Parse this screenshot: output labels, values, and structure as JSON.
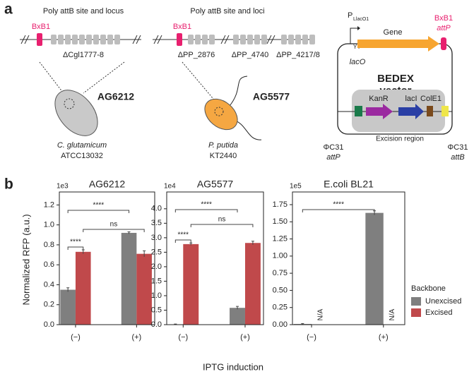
{
  "panel_labels": [
    "a",
    "b"
  ],
  "diagram": {
    "strain_1": {
      "title": "Poly attB site and locus",
      "site": "BxB1",
      "loci": [
        "ΔCgl1777-8"
      ],
      "strain": "AG6212",
      "species": "C. glutamicum",
      "isolate": "ATCC13032"
    },
    "strain_2": {
      "title": "Poly attB site and loci",
      "site": "BxB1",
      "loci": [
        "ΔPP_2876",
        "ΔPP_4740",
        "ΔPP_4217/8"
      ],
      "strain": "AG5577",
      "species": "P. putida",
      "isolate": "KT2440"
    },
    "vector": {
      "promoter": "P",
      "promoter_sub": "LlacO1",
      "gene": "Gene",
      "site": "BxB1",
      "site_type": "attP",
      "operator": "lacO",
      "name": [
        "BEDEX",
        "vector"
      ],
      "parts": [
        "KanR",
        "lacI",
        "ColE1"
      ],
      "left_site": "ΦC31",
      "left_type": "attP",
      "right_site": "ΦC31",
      "right_type": "attB",
      "region": "Excision region"
    }
  },
  "figure_b": {
    "ylabel": "Normalized RFP (a.u.)",
    "xlabel": "IPTG induction",
    "legend_title": "Backbone"
  },
  "chart_data": [
    {
      "type": "bar",
      "title": "AG6212",
      "offset_label": "1e3",
      "categories": [
        "(−)",
        "(+)"
      ],
      "series": [
        {
          "name": "Unexcised",
          "color": "#7f7f7f",
          "values": [
            0.35,
            0.92
          ],
          "errors": [
            0.02,
            0.01
          ]
        },
        {
          "name": "Excised",
          "color": "#c0494b",
          "values": [
            0.73,
            0.71
          ],
          "errors": [
            0.02,
            0.03
          ]
        }
      ],
      "ylim": [
        0,
        1.33
      ],
      "yticks": [
        {
          "value": 0,
          "label": "0.0"
        },
        0.2,
        0.4,
        0.6,
        0.8,
        {
          "value": 1,
          "label": "1.0"
        },
        1.2
      ],
      "annotations": [
        "****",
        "****",
        "ns"
      ]
    },
    {
      "type": "bar",
      "title": "AG5577",
      "offset_label": "1e4",
      "categories": [
        "(−)",
        "(+)"
      ],
      "series": [
        {
          "name": "Unexcised",
          "color": "#7f7f7f",
          "values": [
            0.01,
            0.58
          ],
          "errors": [
            0.01,
            0.05
          ]
        },
        {
          "name": "Excised",
          "color": "#c0494b",
          "values": [
            2.78,
            2.82
          ],
          "errors": [
            0.04,
            0.06
          ]
        }
      ],
      "ylim": [
        0,
        4.58
      ],
      "yticks": [
        {
          "value": 0,
          "label": "0.0"
        },
        0.5,
        {
          "value": 1,
          "label": "1.0"
        },
        1.5,
        {
          "value": 2,
          "label": "2.0"
        },
        2.5,
        {
          "value": 3,
          "label": "3.0"
        },
        3.5,
        {
          "value": 4,
          "label": "4.0"
        }
      ],
      "annotations": [
        "****",
        "****",
        "ns"
      ]
    },
    {
      "type": "bar",
      "title": "E.coli BL21",
      "offset_label": "1e5",
      "categories": [
        "(−)",
        "(+)"
      ],
      "series": [
        {
          "name": "Unexcised",
          "color": "#7f7f7f",
          "values": [
            0.01,
            1.63
          ],
          "errors": [
            0.005,
            0.03
          ]
        },
        {
          "name": "Excised",
          "color": "#c0494b",
          "values": [
            null,
            null
          ],
          "value_labels": [
            "N/A",
            "N/A"
          ]
        }
      ],
      "ylim": [
        0,
        1.935
      ],
      "yticks": [
        {
          "value": 0,
          "label": "0.00"
        },
        0.25,
        {
          "value": 0.5,
          "label": "0.50"
        },
        0.75,
        {
          "value": 1,
          "label": "1.00"
        },
        1.25,
        {
          "value": 1.5,
          "label": "1.50"
        },
        1.75
      ],
      "annotations": [
        "****"
      ]
    }
  ]
}
